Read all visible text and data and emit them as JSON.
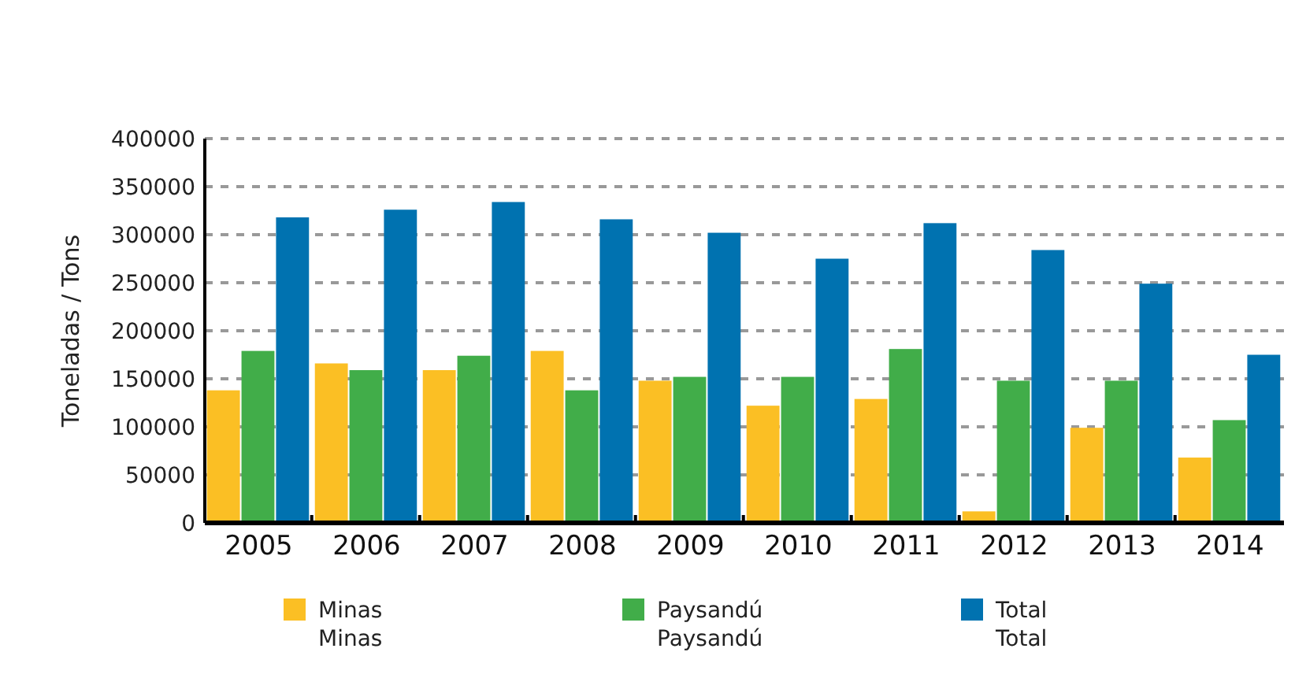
{
  "chart_data": {
    "type": "bar",
    "ylabel": "Toneladas / Tons",
    "categories": [
      "2005",
      "2006",
      "2007",
      "2008",
      "2009",
      "2010",
      "2011",
      "2012",
      "2013",
      "2014"
    ],
    "series": [
      {
        "name": "Minas\nMinas",
        "color": "#fbbf24",
        "values": [
          138000,
          166000,
          159000,
          179000,
          148000,
          122000,
          129000,
          12000,
          99000,
          68000
        ]
      },
      {
        "name": "Paysandú\nPaysandú",
        "color": "#41ad49",
        "values": [
          179000,
          159000,
          174000,
          138000,
          152000,
          152000,
          181000,
          148000,
          148000,
          107000
        ]
      },
      {
        "name": "Total\nTotal",
        "color": "#0072b0",
        "values": [
          318000,
          326000,
          334000,
          316000,
          302000,
          275000,
          312000,
          284000,
          249000,
          175000
        ]
      }
    ],
    "ylim": [
      0,
      400000
    ],
    "yticks": [
      0,
      50000,
      100000,
      150000,
      200000,
      250000,
      300000,
      350000,
      400000
    ],
    "grid": "y",
    "legend": "bottom"
  }
}
